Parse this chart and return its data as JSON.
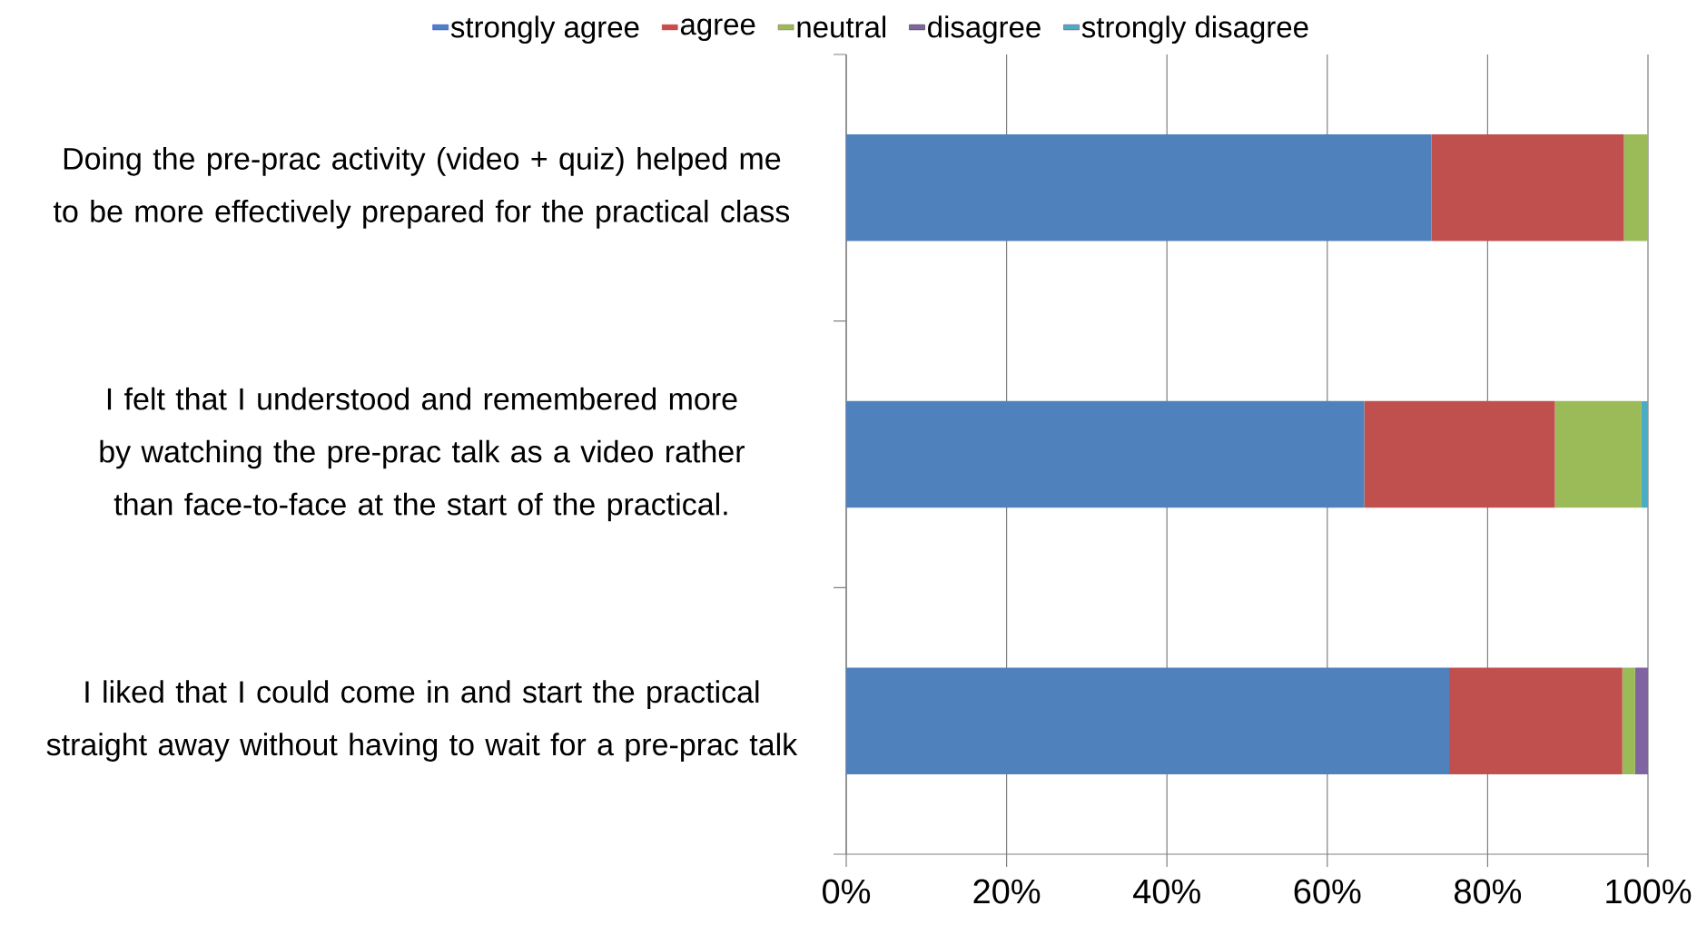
{
  "chart_data": {
    "type": "bar",
    "orientation": "horizontal",
    "stacked": true,
    "categories": [
      "Doing the pre-prac activity (video + quiz) helped me to be more effectively prepared for the practical class",
      "I felt that I understood and remembered more by watching the pre-prac talk as a video rather than face-to-face at the start of the practical.",
      "I liked that I could come in and start the practical straight away without having to wait for a pre-prac talk"
    ],
    "series": [
      {
        "name": "strongly agree",
        "color": "#4f81bd",
        "values": [
          73,
          64.6,
          75.2
        ]
      },
      {
        "name": "agree",
        "color": "#c0504d",
        "values": [
          24,
          23.8,
          21.6
        ]
      },
      {
        "name": "neutral",
        "color": "#9bbb59",
        "values": [
          3,
          10.8,
          1.6
        ]
      },
      {
        "name": "disagree",
        "color": "#8064a2",
        "values": [
          0,
          0,
          1.6
        ]
      },
      {
        "name": "strongly disagree",
        "color": "#4bacc6",
        "values": [
          0,
          0.8,
          0
        ]
      }
    ],
    "xlim": [
      0,
      100
    ],
    "xticks": [
      {
        "value": 0,
        "label": "0%"
      },
      {
        "value": 20,
        "label": "20%"
      },
      {
        "value": 40,
        "label": "40%"
      },
      {
        "value": 60,
        "label": "60%"
      },
      {
        "value": 80,
        "label": "80%"
      },
      {
        "value": 100,
        "label": "100%"
      }
    ],
    "grid": "x",
    "legend": "top"
  }
}
